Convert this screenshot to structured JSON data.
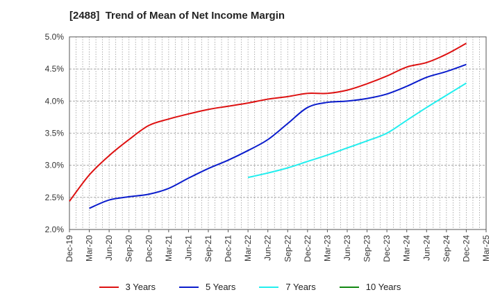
{
  "chart_data": {
    "type": "line",
    "title": "[2488]  Trend of Mean of Net Income Margin",
    "xlabel": "",
    "ylabel": "",
    "x": [
      "Dec-19",
      "Mar-20",
      "Jun-20",
      "Sep-20",
      "Dec-20",
      "Mar-21",
      "Jun-21",
      "Sep-21",
      "Dec-21",
      "Mar-22",
      "Jun-22",
      "Sep-22",
      "Dec-22",
      "Mar-23",
      "Jun-23",
      "Sep-23",
      "Dec-23",
      "Mar-24",
      "Jun-24",
      "Sep-24",
      "Dec-24",
      "Mar-25"
    ],
    "ylim": [
      2.0,
      5.0
    ],
    "yticks": [
      "2.0%",
      "2.5%",
      "3.0%",
      "3.5%",
      "4.0%",
      "4.5%",
      "5.0%"
    ],
    "grid": true,
    "legend_position": "bottom",
    "series": [
      {
        "name": "3 Years",
        "color": "#dd1111",
        "values": [
          2.44,
          2.85,
          3.15,
          3.4,
          3.62,
          3.72,
          3.8,
          3.87,
          3.92,
          3.97,
          4.03,
          4.07,
          4.12,
          4.12,
          4.17,
          4.27,
          4.39,
          4.53,
          4.6,
          4.73,
          4.9,
          null
        ]
      },
      {
        "name": "5 Years",
        "color": "#0a1ccc",
        "values": [
          null,
          2.33,
          2.46,
          2.51,
          2.55,
          2.64,
          2.8,
          2.95,
          3.08,
          3.23,
          3.4,
          3.65,
          3.9,
          3.98,
          4.0,
          4.04,
          4.11,
          4.23,
          4.37,
          4.46,
          4.57,
          null
        ]
      },
      {
        "name": "7 Years",
        "color": "#22eeee",
        "values": [
          null,
          null,
          null,
          null,
          null,
          null,
          null,
          null,
          null,
          2.81,
          2.88,
          2.96,
          3.06,
          3.16,
          3.27,
          3.38,
          3.5,
          3.7,
          3.9,
          4.09,
          4.28,
          null
        ]
      },
      {
        "name": "10 Years",
        "color": "#118811",
        "values": [
          null,
          null,
          null,
          null,
          null,
          null,
          null,
          null,
          null,
          null,
          null,
          null,
          null,
          null,
          null,
          null,
          null,
          null,
          null,
          null,
          null,
          null
        ]
      }
    ]
  }
}
